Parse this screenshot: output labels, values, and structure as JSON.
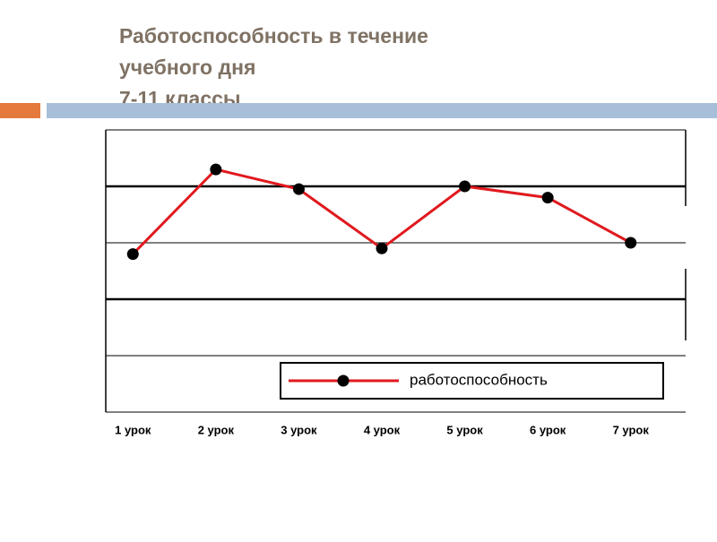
{
  "chart_data": {
    "type": "line",
    "title": [
      "Работоспособность в течение",
      "учебного дня",
      "7-11 классы"
    ],
    "categories": [
      "1 урок",
      "2 урок",
      "3 урок",
      "4 урок",
      "5 урок",
      "6 урок",
      "7 урок"
    ],
    "series": [
      {
        "name": "работоспособность",
        "color": "#e0191e",
        "values": [
          2.8,
          4.3,
          3.95,
          2.9,
          4.0,
          3.8,
          3.0
        ]
      }
    ],
    "ylim": [
      0,
      5
    ],
    "grid": true
  }
}
